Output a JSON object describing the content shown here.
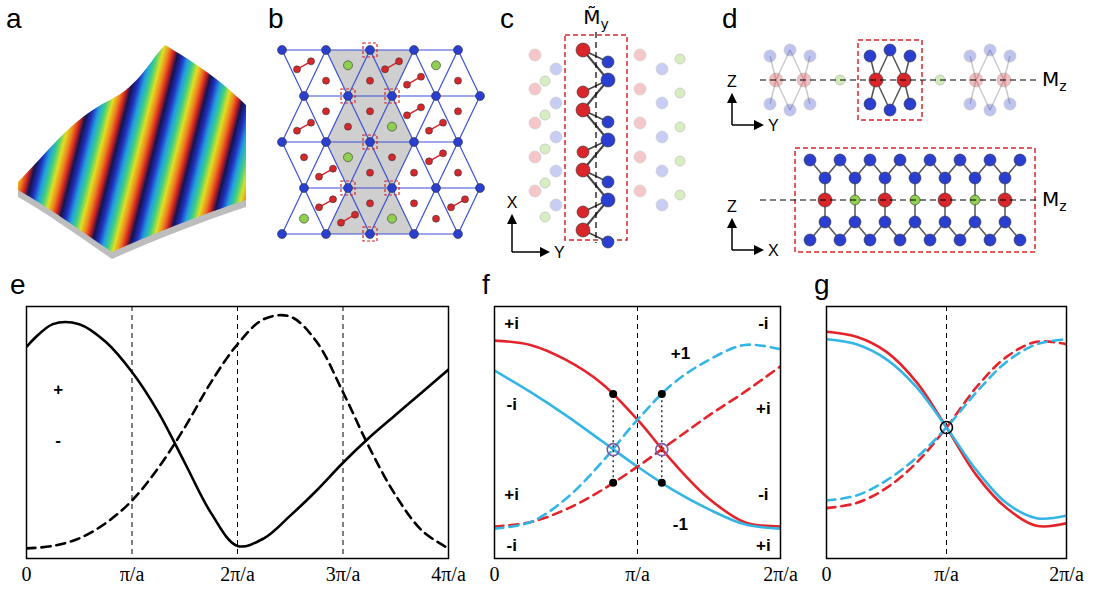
{
  "figure": {
    "panels": [
      {
        "letter": "a"
      },
      {
        "letter": "b"
      },
      {
        "letter": "c",
        "mirror": {
          "symbol": "M̃",
          "subscript": "y"
        },
        "axes": {
          "vertical": "X",
          "horizontal": "Y"
        }
      },
      {
        "letter": "d",
        "views": [
          {
            "axes": {
              "vertical": "Z",
              "horizontal": "Y"
            },
            "mirror": {
              "symbol": "M",
              "subscript": "z"
            }
          },
          {
            "axes": {
              "vertical": "Z",
              "horizontal": "X"
            },
            "mirror": {
              "symbol": "M",
              "subscript": "z"
            }
          }
        ]
      }
    ]
  },
  "chart_data": [
    {
      "type": "line",
      "title": "e",
      "x": [
        0,
        0.25,
        0.5,
        0.75,
        1,
        1.25,
        1.5,
        1.75,
        2,
        2.25,
        2.5,
        2.75,
        3,
        3.25,
        3.5,
        3.75,
        4
      ],
      "series": [
        {
          "color": "#000000",
          "line_style": "solid",
          "values": [
            0.84,
            0.93,
            0.93,
            0.86,
            0.74,
            0.58,
            0.38,
            0.18,
            0.05,
            0.08,
            0.17,
            0.27,
            0.38,
            0.48,
            0.57,
            0.66,
            0.75
          ]
        },
        {
          "color": "#000000",
          "line_style": "dashed",
          "values": [
            0.04,
            0.05,
            0.08,
            0.14,
            0.23,
            0.36,
            0.52,
            0.7,
            0.85,
            0.95,
            0.96,
            0.86,
            0.66,
            0.44,
            0.25,
            0.11,
            0.04
          ]
        }
      ],
      "xlim": [
        0,
        4
      ],
      "xticks": [
        0,
        {
          "value": 1,
          "label": "π/a"
        },
        {
          "value": 2,
          "label": "2π/a"
        },
        {
          "value": 3,
          "label": "3π/a"
        },
        {
          "value": 4,
          "label": "4π/a"
        }
      ],
      "ylim": [
        0,
        1
      ],
      "grid": true,
      "tick_labels": "x",
      "annotations": [
        {
          "text": "+",
          "x": 0.3,
          "y": 0.67
        },
        {
          "text": "-",
          "x": 0.3,
          "y": 0.47
        }
      ],
      "points": []
    },
    {
      "type": "line",
      "title": "f",
      "x": [
        0,
        0.25,
        0.5,
        0.75,
        1,
        1.25,
        1.5,
        1.75,
        2
      ],
      "series": [
        {
          "color": "#e3242b",
          "line_style": "solid",
          "values": [
            0.92,
            0.9,
            0.83,
            0.72,
            0.55,
            0.35,
            0.18,
            0.07,
            0.05
          ]
        },
        {
          "color": "#33b5e5",
          "line_style": "solid",
          "values": [
            0.78,
            0.68,
            0.57,
            0.45,
            0.33,
            0.22,
            0.13,
            0.06,
            0.04
          ]
        },
        {
          "color": "#e3242b",
          "line_style": "dashed",
          "values": [
            0.05,
            0.07,
            0.13,
            0.22,
            0.33,
            0.45,
            0.57,
            0.68,
            0.8
          ]
        },
        {
          "color": "#33b5e5",
          "line_style": "dashed",
          "values": [
            0.04,
            0.07,
            0.18,
            0.35,
            0.55,
            0.72,
            0.83,
            0.9,
            0.88
          ]
        }
      ],
      "xlim": [
        0,
        2
      ],
      "xticks": [
        0,
        {
          "value": 1,
          "label": "π/a"
        },
        {
          "value": 2,
          "label": "2π/a"
        }
      ],
      "ylim": [
        -0.1,
        1.08
      ],
      "grid": true,
      "tick_labels": "x",
      "annotations": [
        {
          "text": "+i",
          "x": 0.12,
          "y": 1.0
        },
        {
          "text": "-i",
          "x": 0.12,
          "y": 0.62
        },
        {
          "text": "+i",
          "x": 0.12,
          "y": 0.2
        },
        {
          "text": "-i",
          "x": 0.12,
          "y": -0.04
        },
        {
          "text": "-i",
          "x": 1.88,
          "y": 1.0
        },
        {
          "text": "+i",
          "x": 1.88,
          "y": 0.6
        },
        {
          "text": "-i",
          "x": 1.88,
          "y": 0.2
        },
        {
          "text": "+i",
          "x": 1.88,
          "y": -0.04
        },
        {
          "text": "+1",
          "x": 1.3,
          "y": 0.86
        },
        {
          "text": "-1",
          "x": 1.3,
          "y": 0.06
        }
      ],
      "points": [
        {
          "x": 0.83,
          "y": 0.41,
          "marker": "open_circle",
          "color": "#7b5ea7"
        },
        {
          "x": 1.17,
          "y": 0.41,
          "marker": "open_circle",
          "color": "#7b5ea7"
        },
        {
          "x": 0.83,
          "y": 0.67,
          "marker": "dot",
          "color": "#000000"
        },
        {
          "x": 0.83,
          "y": 0.255,
          "marker": "dot",
          "color": "#000000"
        },
        {
          "x": 1.17,
          "y": 0.67,
          "marker": "dot",
          "color": "#000000"
        },
        {
          "x": 1.17,
          "y": 0.255,
          "marker": "dot",
          "color": "#000000"
        }
      ]
    },
    {
      "type": "line",
      "title": "g",
      "x": [
        0,
        0.25,
        0.5,
        0.75,
        1,
        1.25,
        1.5,
        1.75,
        2
      ],
      "series": [
        {
          "color": "#e3242b",
          "line_style": "solid",
          "values": [
            0.9,
            0.88,
            0.82,
            0.7,
            0.52,
            0.33,
            0.2,
            0.13,
            0.14
          ]
        },
        {
          "color": "#33b5e5",
          "line_style": "solid",
          "values": [
            0.87,
            0.85,
            0.79,
            0.68,
            0.52,
            0.35,
            0.22,
            0.16,
            0.17
          ]
        },
        {
          "color": "#e3242b",
          "line_style": "dashed",
          "values": [
            0.2,
            0.22,
            0.28,
            0.38,
            0.52,
            0.68,
            0.8,
            0.86,
            0.85
          ]
        },
        {
          "color": "#33b5e5",
          "line_style": "dashed",
          "values": [
            0.23,
            0.25,
            0.31,
            0.4,
            0.52,
            0.66,
            0.78,
            0.85,
            0.87
          ]
        }
      ],
      "xlim": [
        0,
        2
      ],
      "xticks": [
        0,
        {
          "value": 1,
          "label": "π/a"
        },
        {
          "value": 2,
          "label": "2π/a"
        }
      ],
      "ylim": [
        0,
        1
      ],
      "grid": true,
      "tick_labels": "x",
      "annotations": [],
      "points": [
        {
          "x": 1,
          "y": 0.52,
          "marker": "open_circle",
          "color": "#000000"
        }
      ]
    }
  ]
}
